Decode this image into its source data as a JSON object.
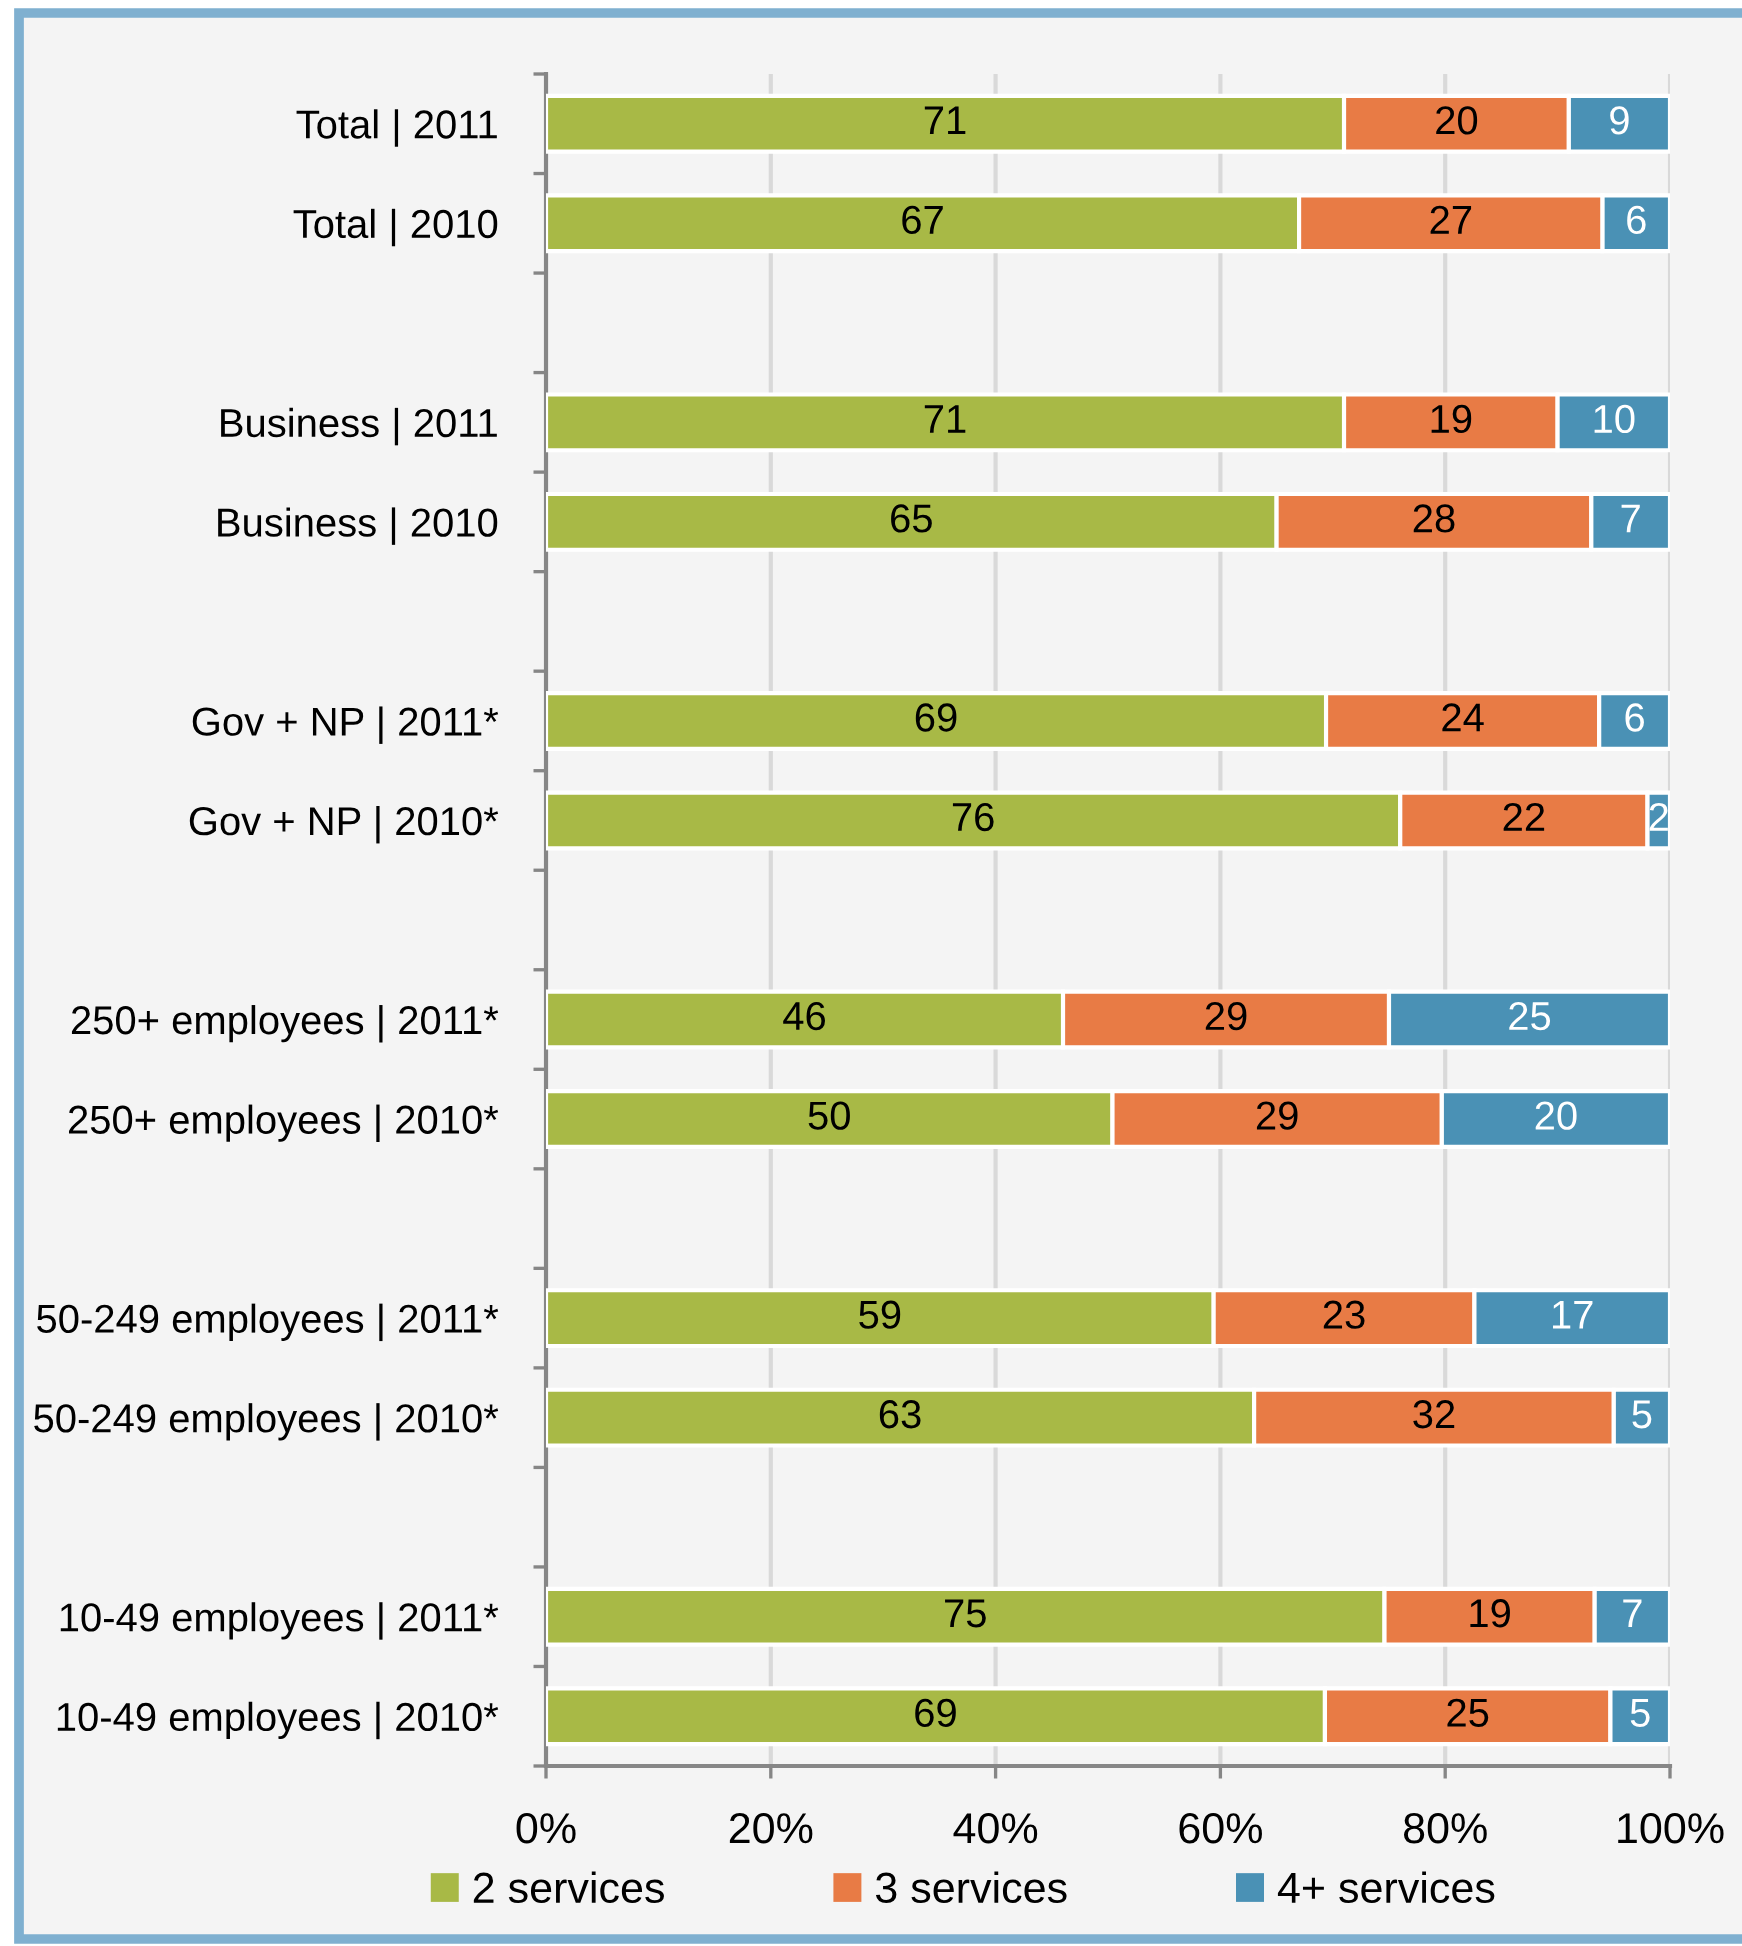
{
  "chart_data": {
    "type": "bar",
    "orientation": "horizontal",
    "stacked": true,
    "categories": [
      "Total | 2011",
      "Total | 2010",
      null,
      "Business | 2011",
      "Business | 2010",
      null,
      "Gov + NP | 2011*",
      "Gov + NP | 2010*",
      null,
      "250+ employees | 2011*",
      "250+ employees | 2010*",
      null,
      "50-249 employees | 2011*",
      "50-249 employees | 2010*",
      null,
      "10-49 employees | 2011*",
      "10-49 employees | 2010*"
    ],
    "series": [
      {
        "name": "2 services",
        "color": "#a8b946",
        "values": [
          71,
          67,
          null,
          71,
          65,
          null,
          69.4,
          76,
          null,
          46,
          50.4,
          null,
          59.4,
          63,
          null,
          74.6,
          69.3
        ],
        "value_labels": [
          "71",
          "67",
          null,
          "71",
          "65",
          null,
          "69",
          "76",
          null,
          "46",
          "50",
          null,
          "59",
          "63",
          null,
          "75",
          "69"
        ]
      },
      {
        "name": "3 services",
        "color": "#e87b45",
        "values": [
          20,
          27,
          null,
          19,
          28,
          null,
          24.3,
          22,
          null,
          29,
          29.3,
          null,
          23.2,
          32,
          null,
          18.7,
          25.4
        ],
        "value_labels": [
          "20",
          "27",
          null,
          "19",
          "28",
          null,
          "24",
          "22",
          null,
          "29",
          "29",
          null,
          "23",
          "32",
          null,
          "19",
          "25"
        ]
      },
      {
        "name": "4+ services",
        "color": "#4a91b5",
        "values": [
          9,
          6,
          null,
          10,
          7,
          null,
          6.3,
          2,
          null,
          25,
          20.3,
          null,
          17.4,
          5,
          null,
          6.7,
          5.3
        ],
        "value_labels": [
          "9",
          "6",
          null,
          "10",
          "7",
          null,
          "6",
          "2",
          null,
          "25",
          "20",
          null,
          "17",
          "5",
          null,
          "7",
          "5"
        ]
      }
    ],
    "xlim": [
      0,
      100
    ],
    "xticks": [
      {
        "value": 0,
        "label": "0%"
      },
      {
        "value": 20,
        "label": "20%"
      },
      {
        "value": 40,
        "label": "40%"
      },
      {
        "value": 60,
        "label": "60%"
      },
      {
        "value": 80,
        "label": "80%"
      },
      {
        "value": 100,
        "label": "100%"
      }
    ],
    "grid": "x",
    "legend": "bottom"
  }
}
